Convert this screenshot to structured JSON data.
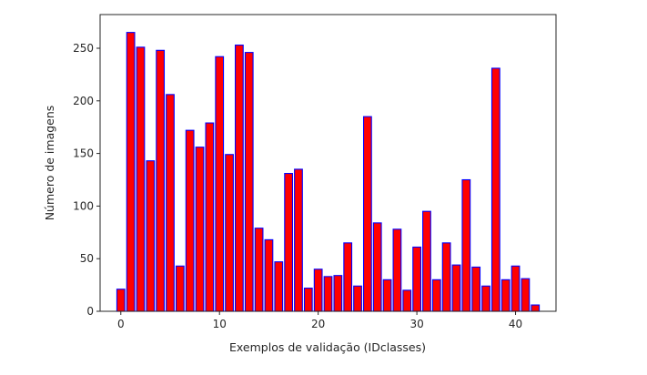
{
  "chart_data": {
    "type": "bar",
    "title": "",
    "xlabel": "Exemplos de validação (IDclasses)",
    "ylabel": "Número de imagens",
    "x": [
      0,
      1,
      2,
      3,
      4,
      5,
      6,
      7,
      8,
      9,
      10,
      11,
      12,
      13,
      14,
      15,
      16,
      17,
      18,
      19,
      20,
      21,
      22,
      23,
      24,
      25,
      26,
      27,
      28,
      29,
      30,
      31,
      32,
      33,
      34,
      35,
      36,
      37,
      38,
      39,
      40,
      41,
      42
    ],
    "values": [
      21,
      265,
      251,
      143,
      248,
      206,
      43,
      172,
      156,
      179,
      242,
      149,
      253,
      246,
      79,
      68,
      47,
      131,
      135,
      22,
      40,
      33,
      34,
      65,
      24,
      185,
      84,
      30,
      78,
      20,
      61,
      95,
      30,
      65,
      44,
      125,
      42,
      24,
      231,
      30,
      43,
      31,
      6
    ],
    "xlim": [
      -2.1,
      44.1
    ],
    "ylim": [
      0,
      282
    ],
    "xticks": [
      0,
      10,
      20,
      30,
      40
    ],
    "xtick_labels": [
      "0",
      "10",
      "20",
      "30",
      "40"
    ],
    "yticks": [
      0,
      50,
      100,
      150,
      200,
      250
    ],
    "ytick_labels": [
      "0",
      "50",
      "100",
      "150",
      "200",
      "250"
    ],
    "bar_fill": "#ff0000",
    "bar_edge": "#0000ff",
    "grid": false,
    "legend": "none"
  }
}
